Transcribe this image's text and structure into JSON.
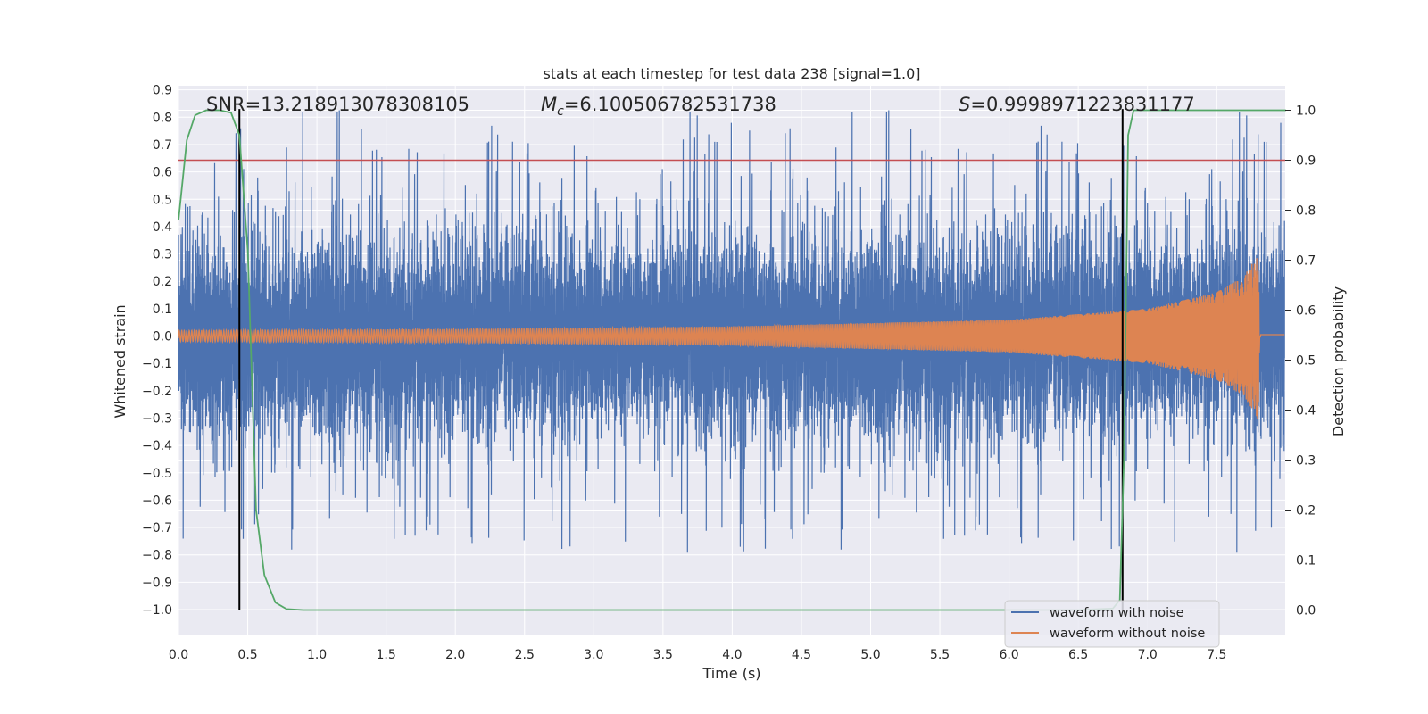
{
  "chart_data": {
    "type": "line",
    "title": "stats at each timestep for test data 238 [signal=1.0]",
    "xlabel": "Time (s)",
    "ylabel": "Whitened strain",
    "y2label": "Detection probability",
    "xlim": [
      0.0,
      8.0
    ],
    "ylim": [
      -1.09,
      0.92
    ],
    "y2lim": [
      -0.047,
      1.047
    ],
    "xticks": [
      "0.0",
      "0.5",
      "1.0",
      "1.5",
      "2.0",
      "2.5",
      "3.0",
      "3.5",
      "4.0",
      "4.5",
      "5.0",
      "5.5",
      "6.0",
      "6.5",
      "7.0",
      "7.5"
    ],
    "yticks": [
      "0.9",
      "0.8",
      "0.7",
      "0.6",
      "0.5",
      "0.4",
      "0.3",
      "0.2",
      "0.1",
      "0.0",
      "−0.1",
      "−0.2",
      "−0.3",
      "−0.4",
      "−0.5",
      "−0.6",
      "−0.7",
      "−0.8",
      "−0.9",
      "−1.0"
    ],
    "y2ticks": [
      "0.0",
      "0.1",
      "0.2",
      "0.3",
      "0.4",
      "0.5",
      "0.6",
      "0.7",
      "0.8",
      "0.9",
      "1.0"
    ],
    "grid": true,
    "legend_position": "lower-right",
    "annotations": {
      "snr": "SNR=13.218913078308105",
      "mc_symbol": "M",
      "mc_subscript": "c",
      "mc_value": "=6.100506782531738",
      "s_symbol": "S",
      "s_value": "=0.9998971223831177"
    },
    "series": [
      {
        "name": "waveform with noise",
        "color": "#4c72b0",
        "axis": "left",
        "description_stats": {
          "duration": 7.99,
          "typical_abs": 0.3,
          "peak_max": 0.83,
          "peak_min": -0.97
        }
      },
      {
        "name": "waveform without noise",
        "color": "#dd8452",
        "axis": "left",
        "envelope": {
          "x": [
            0.0,
            2.0,
            4.0,
            6.0,
            7.0,
            7.5,
            7.7,
            7.8,
            7.81,
            8.0
          ],
          "amp": [
            0.02,
            0.025,
            0.035,
            0.06,
            0.1,
            0.16,
            0.22,
            0.31,
            0.005,
            0.005
          ]
        }
      },
      {
        "name": "",
        "color": "#55a868",
        "axis": "right",
        "x": [
          0.0,
          0.06,
          0.12,
          0.2,
          0.3,
          0.38,
          0.44,
          0.5,
          0.56,
          0.62,
          0.7,
          0.78,
          0.9,
          1.5,
          3.0,
          5.0,
          6.5,
          6.75,
          6.8,
          6.83,
          6.86,
          6.9,
          7.0,
          8.0
        ],
        "y": [
          0.78,
          0.94,
          0.99,
          1.0,
          1.0,
          0.995,
          0.95,
          0.72,
          0.2,
          0.07,
          0.015,
          0.002,
          0.0,
          0.0,
          0.0,
          0.0,
          0.0,
          0.003,
          0.02,
          0.3,
          0.95,
          1.0,
          1.0,
          1.0
        ]
      }
    ],
    "threshold": {
      "axis": "right",
      "value": 0.9,
      "color": "#c44e52"
    },
    "vlines": [
      {
        "x": 0.44,
        "y_from": -1.0,
        "y_to": 0.83,
        "color": "#000000"
      },
      {
        "x": 6.82,
        "y_from": -1.0,
        "y_to": 0.83,
        "color": "#000000"
      }
    ]
  },
  "colors": {
    "background": "#eaeaf2",
    "grid": "#ffffff",
    "text": "#262626"
  }
}
